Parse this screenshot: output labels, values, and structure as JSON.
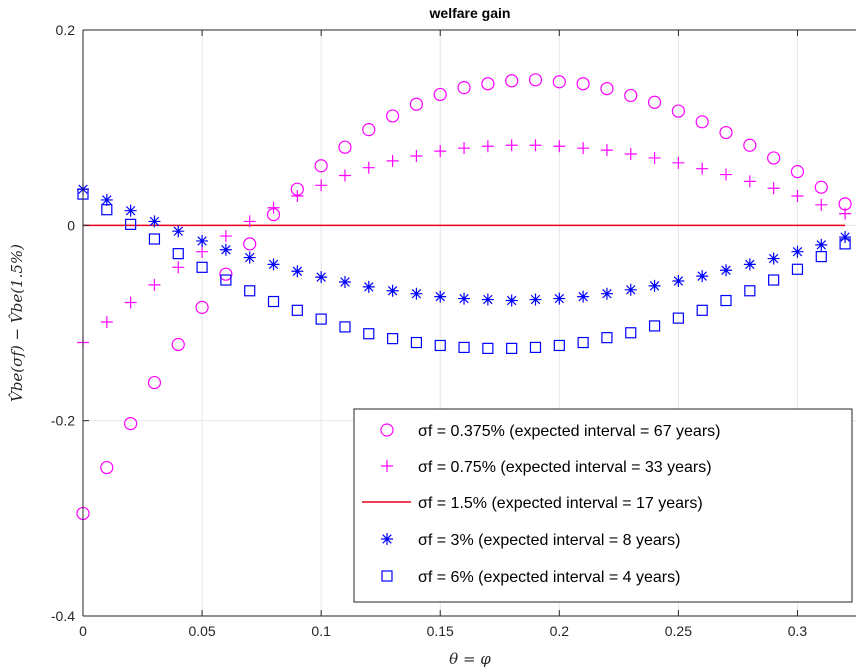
{
  "chart_data": {
    "type": "scatter",
    "title": "welfare gain",
    "xlabel": "θ = φ",
    "ylabel": "V̂be(σf) − V̂be(1.5%)",
    "xlim": [
      0,
      0.325
    ],
    "ylim": [
      -0.4,
      0.2
    ],
    "xticks": [
      "0",
      "0.05",
      "0.1",
      "0.15",
      "0.2",
      "0.25",
      "0.3"
    ],
    "yticks": [
      "-0.4",
      "-0.2",
      "0",
      "0.2"
    ],
    "grid": true,
    "legend_position": "bottom-right",
    "x": [
      0,
      0.01,
      0.02,
      0.03,
      0.04,
      0.05,
      0.06,
      0.07,
      0.08,
      0.09,
      0.1,
      0.11,
      0.12,
      0.13,
      0.14,
      0.15,
      0.16,
      0.17,
      0.18,
      0.19,
      0.2,
      0.21,
      0.22,
      0.23,
      0.24,
      0.25,
      0.26,
      0.27,
      0.28,
      0.29,
      0.3,
      0.31,
      0.32
    ],
    "series": [
      {
        "name": "σf = 0.375% (expected interval = 67 years)",
        "marker": "circle",
        "color": "#ff00ff",
        "values": [
          -0.295,
          -0.248,
          -0.203,
          -0.161,
          -0.122,
          -0.084,
          -0.05,
          -0.019,
          0.011,
          0.037,
          0.061,
          0.08,
          0.098,
          0.112,
          0.124,
          0.134,
          0.141,
          0.145,
          0.148,
          0.149,
          0.147,
          0.145,
          0.14,
          0.133,
          0.126,
          0.117,
          0.106,
          0.095,
          0.082,
          0.069,
          0.055,
          0.039,
          0.022
        ]
      },
      {
        "name": "σf = 0.75% (expected interval = 33 years)",
        "marker": "plus",
        "color": "#ff00ff",
        "values": [
          -0.12,
          -0.099,
          -0.079,
          -0.061,
          -0.043,
          -0.027,
          -0.011,
          0.004,
          0.018,
          0.03,
          0.041,
          0.051,
          0.059,
          0.066,
          0.071,
          0.076,
          0.079,
          0.081,
          0.082,
          0.082,
          0.081,
          0.079,
          0.077,
          0.073,
          0.069,
          0.064,
          0.058,
          0.052,
          0.045,
          0.038,
          0.03,
          0.021,
          0.012
        ]
      },
      {
        "name": "σf = 1.5% (expected interval = 17 years)",
        "marker": "line",
        "color": "#e8001c",
        "values": [
          0,
          0,
          0,
          0,
          0,
          0,
          0,
          0,
          0,
          0,
          0,
          0,
          0,
          0,
          0,
          0,
          0,
          0,
          0,
          0,
          0,
          0,
          0,
          0,
          0,
          0,
          0,
          0,
          0,
          0,
          0,
          0,
          0
        ]
      },
      {
        "name": "σf = 3% (expected interval = 8 years)",
        "marker": "asterisk",
        "color": "#0000ff",
        "values": [
          0.037,
          0.026,
          0.015,
          0.004,
          -0.006,
          -0.016,
          -0.025,
          -0.033,
          -0.04,
          -0.047,
          -0.053,
          -0.058,
          -0.063,
          -0.067,
          -0.07,
          -0.073,
          -0.075,
          -0.076,
          -0.077,
          -0.076,
          -0.075,
          -0.073,
          -0.07,
          -0.066,
          -0.062,
          -0.057,
          -0.052,
          -0.046,
          -0.04,
          -0.034,
          -0.027,
          -0.02,
          -0.012
        ]
      },
      {
        "name": "σf = 6% (expected interval = 4 years)",
        "marker": "square",
        "color": "#0000ff",
        "values": [
          0.032,
          0.016,
          0.001,
          -0.014,
          -0.029,
          -0.043,
          -0.056,
          -0.067,
          -0.078,
          -0.087,
          -0.096,
          -0.104,
          -0.111,
          -0.116,
          -0.12,
          -0.123,
          -0.125,
          -0.126,
          -0.126,
          -0.125,
          -0.123,
          -0.12,
          -0.115,
          -0.11,
          -0.103,
          -0.095,
          -0.087,
          -0.077,
          -0.067,
          -0.056,
          -0.045,
          -0.032,
          -0.019
        ]
      }
    ]
  }
}
